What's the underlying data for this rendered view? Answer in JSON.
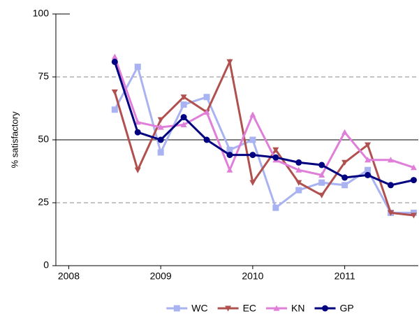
{
  "chart_data": {
    "type": "line",
    "y_label": "% satisfactory",
    "x": [
      2008.5,
      2008.75,
      2009,
      2009.25,
      2009.5,
      2009.75,
      2010,
      2010.25,
      2010.5,
      2010.75,
      2011,
      2011.25,
      2011.5,
      2011.75
    ],
    "xlim": [
      2007.86,
      2011.8
    ],
    "xticks": [
      2008,
      2009,
      2010,
      2011
    ],
    "ylim": [
      0,
      100
    ],
    "yticks": [
      0,
      25,
      50,
      75,
      100
    ],
    "legend": "bottom",
    "series": [
      {
        "name": "WC",
        "color": "#a9b3f2",
        "marker": "square",
        "values": [
          62,
          79,
          45,
          64,
          67,
          46,
          50,
          23,
          30,
          33,
          32,
          38,
          21,
          21
        ]
      },
      {
        "name": "EC",
        "color": "#b0504f",
        "marker": "triangle-down",
        "values": [
          69,
          38,
          58,
          67,
          61,
          81,
          33,
          46,
          33,
          28,
          41,
          48,
          21,
          20
        ]
      },
      {
        "name": "KN",
        "color": "#e07fd9",
        "marker": "triangle-up",
        "values": [
          83,
          57,
          55,
          56,
          61,
          38,
          60,
          42,
          38,
          36,
          53,
          42,
          42,
          39
        ]
      },
      {
        "name": "GP",
        "color": "#000080",
        "marker": "circle",
        "values": [
          81,
          53,
          50,
          59,
          50,
          44,
          44,
          43,
          41,
          40,
          35,
          36,
          32,
          34
        ]
      }
    ]
  }
}
